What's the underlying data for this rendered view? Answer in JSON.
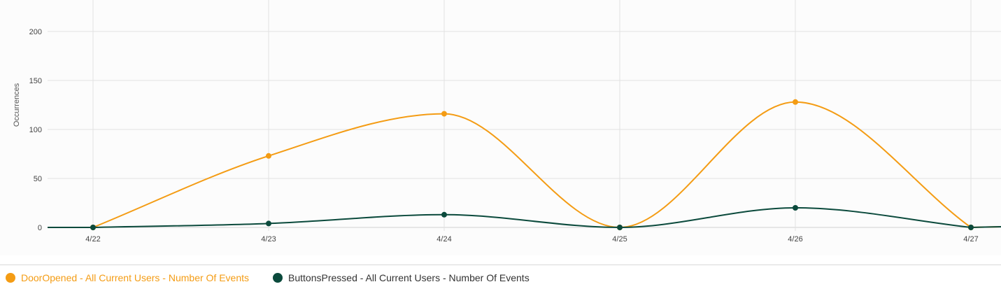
{
  "chart_data": {
    "type": "line",
    "ylabel": "Occurrences",
    "ylim": [
      0,
      200
    ],
    "yticks": [
      0,
      50,
      100,
      150,
      200
    ],
    "categories": [
      "4/22",
      "4/23",
      "4/24",
      "4/25",
      "4/26",
      "4/27"
    ],
    "series": [
      {
        "name": "DoorOpened - All Current Users - Number Of Events",
        "color": "#f49c14",
        "values": [
          0,
          73,
          116,
          0,
          128,
          0
        ]
      },
      {
        "name": "ButtonsPressed - All Current Users - Number Of Events",
        "color": "#0b4a3c",
        "values": [
          0,
          4,
          13,
          0,
          20,
          0
        ]
      }
    ],
    "grid": true,
    "legend_position": "bottom-left"
  }
}
